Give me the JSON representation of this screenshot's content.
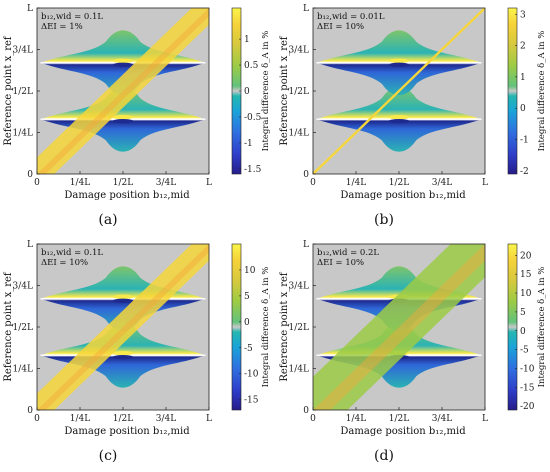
{
  "chart_data": [
    {
      "type": "heatmap",
      "panel_label": "(a)",
      "annotation": [
        "b₁₂,wid = 0.1L",
        "ΔEI = 1%"
      ],
      "xlabel": "Damage position b₁₂,mid",
      "ylabel": "Reference point x_ref",
      "x_ticks": [
        "0",
        "1/4L",
        "1/2L",
        "3/4L",
        "L"
      ],
      "y_ticks": [
        "0",
        "1/4L",
        "1/2L",
        "3/4L",
        "L"
      ],
      "xlim": [
        0,
        1
      ],
      "ylim": [
        0,
        1
      ],
      "colorbar": {
        "label": "Integral difference δ_A in %",
        "min": -1.6,
        "max": 1.6,
        "ticks": [
          -1.5,
          -1,
          -0.5,
          0,
          0.5,
          1
        ]
      },
      "diagonal_band_width": 0.1,
      "lobe_rows": [
        0.33,
        0.67
      ],
      "grid": false
    },
    {
      "type": "heatmap",
      "panel_label": "(b)",
      "annotation": [
        "b₁₂,wid = 0.01L",
        "ΔEI = 10%"
      ],
      "xlabel": "Damage position b₁₂,mid",
      "ylabel": "Reference point x_ref",
      "x_ticks": [
        "0",
        "1/4L",
        "1/2L",
        "3/4L",
        "L"
      ],
      "y_ticks": [
        "0",
        "1/4L",
        "1/2L",
        "3/4L",
        "L"
      ],
      "xlim": [
        0,
        1
      ],
      "ylim": [
        0,
        1
      ],
      "colorbar": {
        "label": "Integral difference δ_A in %",
        "min": -2.1,
        "max": 3.2,
        "ticks": [
          -2,
          -1,
          0,
          1,
          2,
          3
        ]
      },
      "diagonal_band_width": 0.01,
      "lobe_rows": [
        0.33,
        0.67
      ],
      "grid": false
    },
    {
      "type": "heatmap",
      "panel_label": "(c)",
      "annotation": [
        "b₁₂,wid = 0.1L",
        "ΔEI = 10%"
      ],
      "xlabel": "Damage position b₁₂,mid",
      "ylabel": "Reference point x_ref",
      "x_ticks": [
        "0",
        "1/4L",
        "1/2L",
        "3/4L",
        "L"
      ],
      "y_ticks": [
        "0",
        "1/4L",
        "1/2L",
        "3/4L",
        "L"
      ],
      "xlim": [
        0,
        1
      ],
      "ylim": [
        0,
        1
      ],
      "colorbar": {
        "label": "Integral difference δ_A in %",
        "min": -17,
        "max": 15,
        "ticks": [
          -15,
          -10,
          -5,
          0,
          5,
          10
        ]
      },
      "diagonal_band_width": 0.1,
      "lobe_rows": [
        0.33,
        0.67
      ],
      "grid": false
    },
    {
      "type": "heatmap",
      "panel_label": "(d)",
      "annotation": [
        "b₁₂,wid = 0.2L",
        "ΔEI = 10%"
      ],
      "xlabel": "Damage position b₁₂,mid",
      "ylabel": "Reference point x_ref",
      "x_ticks": [
        "0",
        "1/4L",
        "1/2L",
        "3/4L",
        "L"
      ],
      "y_ticks": [
        "0",
        "1/4L",
        "1/2L",
        "3/4L",
        "L"
      ],
      "xlim": [
        0,
        1
      ],
      "ylim": [
        0,
        1
      ],
      "colorbar": {
        "label": "Integral difference δ_A in %",
        "min": -21,
        "max": 23,
        "ticks": [
          -20,
          -15,
          -10,
          -5,
          0,
          5,
          10,
          15,
          20
        ]
      },
      "diagonal_band_width": 0.2,
      "lobe_rows": [
        0.33,
        0.67
      ],
      "grid": false
    }
  ],
  "colors": {
    "background": "#c8c8c8",
    "band_yellow": "#f6d63a",
    "band_orange": "#f3a93a",
    "band_green": "#9ccb45",
    "lobe_green": "#7ec56b",
    "lobe_teal": "#2bb3b4",
    "lobe_blue": "#2f67d8",
    "lobe_dark": "#1e2a8f",
    "lobe_yellow": "#f9e94a"
  }
}
